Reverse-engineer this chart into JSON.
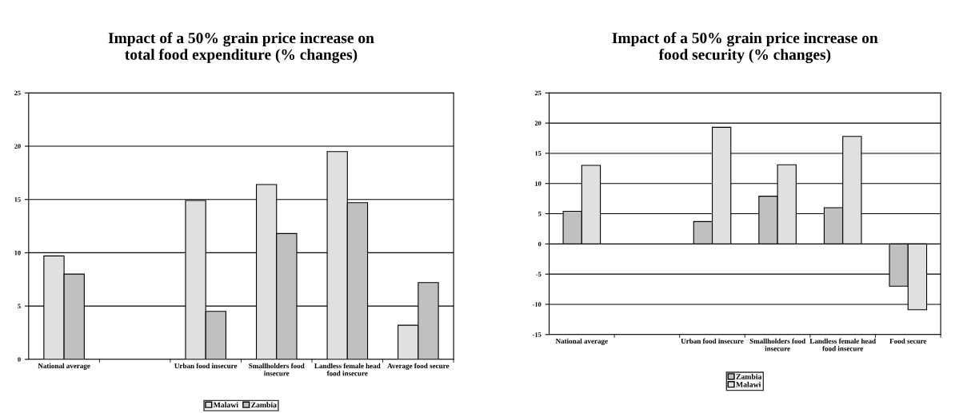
{
  "chart_data": [
    {
      "type": "bar",
      "title": "Impact of a 50% grain price increase on total food expenditure (% changes)",
      "categories": [
        "National average",
        null,
        "Urban food insecure",
        "Smallholders food insecure",
        "Landless female head food insecure",
        "Average food secure"
      ],
      "series": [
        {
          "name": "Malawi",
          "color": "#e0e0e0",
          "values": [
            9.7,
            null,
            14.9,
            16.4,
            19.5,
            3.2
          ]
        },
        {
          "name": "Zambia",
          "color": "#c0c0c0",
          "values": [
            8.0,
            null,
            4.5,
            11.8,
            14.7,
            7.2
          ]
        }
      ],
      "ylim": [
        0,
        25
      ],
      "yticks": [
        0,
        5,
        10,
        15,
        20,
        25
      ],
      "grid": "y",
      "legend": "bottom"
    },
    {
      "type": "bar",
      "title": "Impact of a 50% grain price increase on food security (% changes)",
      "categories": [
        "National average",
        null,
        "Urban food insecure",
        "Smallholders food insecure",
        "Landless female head food insecure",
        "Food secure"
      ],
      "series": [
        {
          "name": "Zambia",
          "color": "#c0c0c0",
          "values": [
            5.4,
            null,
            3.7,
            7.9,
            6.0,
            -7.0
          ]
        },
        {
          "name": "Malawi",
          "color": "#e0e0e0",
          "values": [
            13.0,
            null,
            19.3,
            13.1,
            17.8,
            -10.9
          ]
        }
      ],
      "ylim": [
        -15,
        25
      ],
      "yticks": [
        -15,
        -10,
        -5,
        0,
        5,
        10,
        15,
        20,
        25
      ],
      "grid": "y",
      "legend": "bottom"
    }
  ]
}
